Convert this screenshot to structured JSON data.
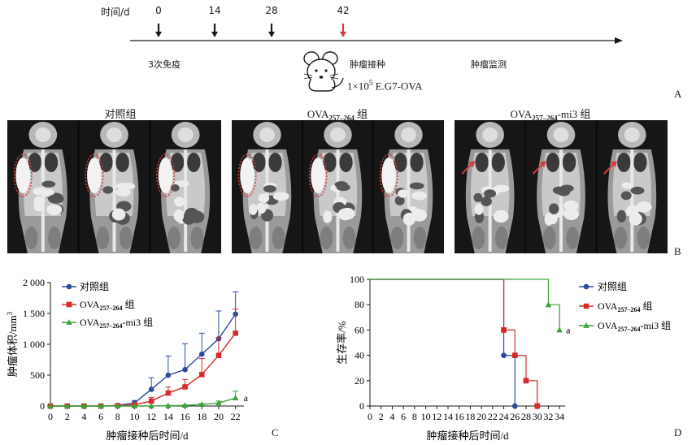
{
  "timeline": {
    "axis_label": "时间/d",
    "days": [
      {
        "label": "0",
        "value": 0,
        "color": "#1a1a1a"
      },
      {
        "label": "14",
        "value": 14,
        "color": "#1a1a1a"
      },
      {
        "label": "28",
        "value": 28,
        "color": "#1a1a1a"
      },
      {
        "label": "42",
        "value": 42,
        "color": "#d63a3a"
      }
    ],
    "immunization": "3次免疫",
    "tumor_inoculation": "肿瘤接种",
    "tumor_monitoring": "肿瘤监测",
    "dose_prefix": "1×10",
    "dose_exp": "5",
    "dose_suffix": " E.G7-OVA",
    "mouse_icon": "mouse-icon"
  },
  "panel_labels": {
    "a": "A",
    "b": "B",
    "c": "C",
    "d": "D"
  },
  "mri": {
    "groups": [
      {
        "title_main": "对照组",
        "title_sub": "",
        "title_tail": "",
        "annotation": "dotted-ellipse",
        "tumor_visible": true
      },
      {
        "title_main": "OVA",
        "title_sub": "257–264",
        "title_tail": " 组",
        "annotation": "dotted-ellipse",
        "tumor_visible": true
      },
      {
        "title_main": "OVA",
        "title_sub": "257–264",
        "title_tail": "-mi3 组",
        "annotation": "red-arrow",
        "tumor_visible": false
      }
    ],
    "annotation_color": "#d63a3a"
  },
  "chart_data": [
    {
      "type": "line",
      "xlabel": "肿瘤接种后时间/d",
      "ylabel_main": "肿瘤体积/mm",
      "ylabel_sup": "3",
      "x": [
        0,
        2,
        4,
        6,
        8,
        10,
        12,
        14,
        16,
        18,
        20,
        22
      ],
      "xticks": [
        "0",
        "2",
        "4",
        "6",
        "8",
        "10",
        "12",
        "14",
        "16",
        "18",
        "20",
        "22"
      ],
      "xlim": [
        0,
        23
      ],
      "ylim": [
        0,
        2000
      ],
      "yticks": [
        "0",
        "500",
        "1 000",
        "1 500",
        "2 000"
      ],
      "ytick_values": [
        0,
        500,
        1000,
        1500,
        2000
      ],
      "grid": false,
      "legend": "top-left",
      "significance": "a",
      "series": [
        {
          "name_main": "对照组",
          "name_sub": "",
          "name_tail": "",
          "color": "#2b4ba0",
          "marker": "circle",
          "values": [
            0,
            0,
            0,
            0,
            10,
            50,
            270,
            500,
            590,
            840,
            1090,
            1490
          ],
          "errors": [
            0,
            0,
            0,
            0,
            10,
            40,
            190,
            310,
            420,
            340,
            450,
            360
          ]
        },
        {
          "name_main": "OVA",
          "name_sub": "257–264",
          "name_tail": " 组",
          "color": "#d62b2b",
          "marker": "square",
          "values": [
            0,
            0,
            0,
            0,
            5,
            20,
            80,
            210,
            310,
            510,
            820,
            1180
          ],
          "errors": [
            0,
            0,
            0,
            0,
            5,
            20,
            60,
            100,
            120,
            260,
            290,
            390
          ]
        },
        {
          "name_main": "OVA",
          "name_sub": "257–264",
          "name_tail": "-mi3 组",
          "color": "#3aa33a",
          "marker": "triangle",
          "values": [
            0,
            0,
            0,
            0,
            0,
            0,
            0,
            5,
            10,
            25,
            50,
            130
          ],
          "errors": [
            0,
            0,
            0,
            0,
            0,
            0,
            0,
            5,
            10,
            15,
            30,
            110
          ]
        }
      ]
    },
    {
      "type": "line",
      "subtype": "step-survival",
      "xlabel": "肿瘤接种后时间/d",
      "ylabel": "生存率/%",
      "xticks": [
        "0",
        "2",
        "4",
        "6",
        "8",
        "10",
        "12",
        "14",
        "16",
        "18",
        "20",
        "22",
        "24",
        "26",
        "28",
        "30",
        "32",
        "34"
      ],
      "xlim": [
        0,
        35
      ],
      "ylim": [
        0,
        100
      ],
      "yticks": [
        "0",
        "20",
        "40",
        "60",
        "80",
        "100"
      ],
      "ytick_values": [
        0,
        20,
        40,
        60,
        80,
        100
      ],
      "grid": false,
      "legend": "top-right",
      "significance": "a",
      "series": [
        {
          "name_main": "对照组",
          "name_sub": "",
          "name_tail": "",
          "color": "#2b4ba0",
          "marker": "circle",
          "steps": [
            [
              0,
              100
            ],
            [
              24,
              40
            ],
            [
              26,
              0
            ]
          ]
        },
        {
          "name_main": "OVA",
          "name_sub": "257–264",
          "name_tail": " 组",
          "color": "#d62b2b",
          "marker": "square",
          "steps": [
            [
              0,
              100
            ],
            [
              24,
              60
            ],
            [
              26,
              40
            ],
            [
              28,
              20
            ],
            [
              30,
              0
            ]
          ]
        },
        {
          "name_main": "OVA",
          "name_sub": "257–264",
          "name_tail": "-mi3 组",
          "color": "#3aa33a",
          "marker": "triangle",
          "steps": [
            [
              0,
              100
            ],
            [
              32,
              80
            ],
            [
              34,
              60
            ]
          ]
        }
      ]
    }
  ]
}
